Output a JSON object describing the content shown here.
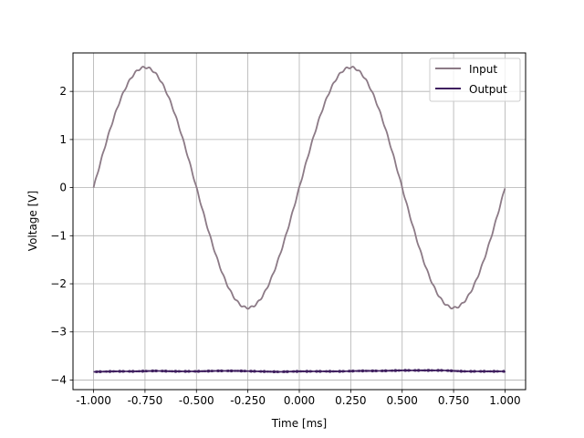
{
  "chart_data": {
    "type": "line",
    "title": "",
    "xlabel": "Time [ms]",
    "ylabel": "Voltage [V]",
    "xlim": [
      -1.1,
      1.1
    ],
    "ylim": [
      -4.2,
      2.8
    ],
    "xticks": [
      -1.0,
      -0.75,
      -0.5,
      -0.25,
      0.0,
      0.25,
      0.5,
      0.75,
      1.0
    ],
    "xtick_labels": [
      "-1.000",
      "-0.750",
      "-0.500",
      "-0.250",
      "0.000",
      "0.250",
      "0.500",
      "0.750",
      "1.000"
    ],
    "yticks": [
      -4,
      -3,
      -2,
      -1,
      0,
      1,
      2
    ],
    "ytick_labels": [
      "−4",
      "−3",
      "−2",
      "−1",
      "0",
      "1",
      "2"
    ],
    "grid": true,
    "legend_position": "top-right",
    "series": [
      {
        "name": "Input",
        "color": "#8c7a86",
        "x": [
          -1.0,
          -0.95,
          -0.9,
          -0.85,
          -0.8,
          -0.75,
          -0.7,
          -0.65,
          -0.6,
          -0.55,
          -0.5,
          -0.45,
          -0.4,
          -0.35,
          -0.3,
          -0.25,
          -0.2,
          -0.15,
          -0.1,
          -0.05,
          0.0,
          0.05,
          0.1,
          0.15,
          0.2,
          0.25,
          0.3,
          0.35,
          0.4,
          0.45,
          0.5,
          0.55,
          0.6,
          0.65,
          0.7,
          0.75,
          0.8,
          0.85,
          0.9,
          0.95,
          1.0
        ],
        "y": [
          0.0,
          0.77,
          1.47,
          2.02,
          2.38,
          2.5,
          2.38,
          2.02,
          1.47,
          0.77,
          0.0,
          -0.77,
          -1.47,
          -2.02,
          -2.38,
          -2.5,
          -2.38,
          -2.02,
          -1.47,
          -0.77,
          0.0,
          0.77,
          1.47,
          2.02,
          2.38,
          2.5,
          2.38,
          2.02,
          1.47,
          0.77,
          0.0,
          -0.77,
          -1.47,
          -2.02,
          -2.38,
          -2.5,
          -2.38,
          -2.02,
          -1.47,
          -0.77,
          0.0
        ]
      },
      {
        "name": "Output",
        "color": "#3f1f5f",
        "x": [
          -1.0,
          -0.9,
          -0.8,
          -0.7,
          -0.6,
          -0.5,
          -0.4,
          -0.3,
          -0.2,
          -0.1,
          0.0,
          0.1,
          0.2,
          0.3,
          0.4,
          0.5,
          0.6,
          0.7,
          0.8,
          0.9,
          1.0
        ],
        "y": [
          -3.83,
          -3.82,
          -3.82,
          -3.81,
          -3.82,
          -3.82,
          -3.81,
          -3.81,
          -3.82,
          -3.83,
          -3.82,
          -3.82,
          -3.82,
          -3.81,
          -3.81,
          -3.8,
          -3.8,
          -3.8,
          -3.82,
          -3.82,
          -3.82
        ]
      }
    ]
  }
}
